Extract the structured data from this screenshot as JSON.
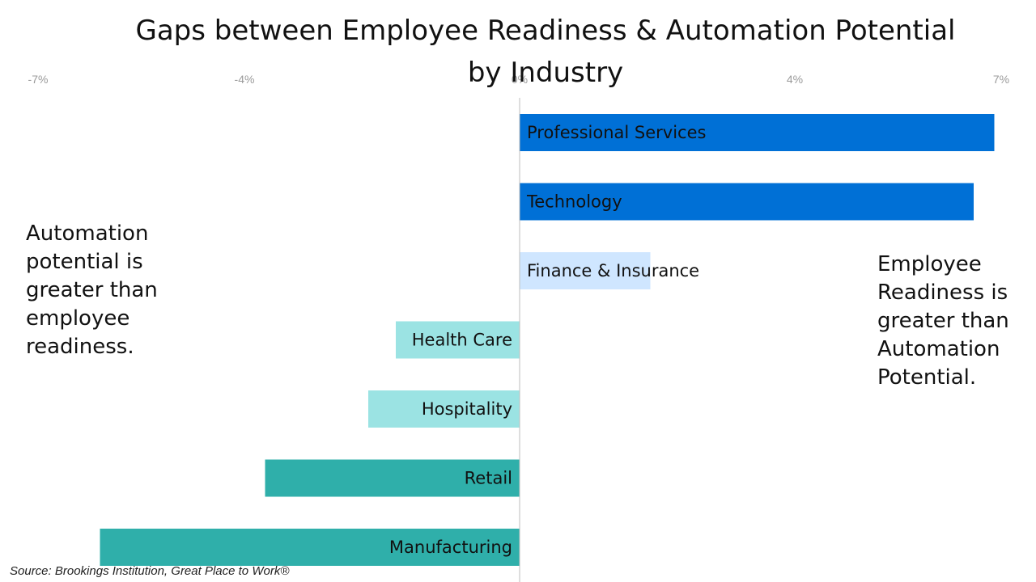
{
  "title_line1": "Gaps between Employee Readiness & Automation Potential",
  "title_line2": "by Industry",
  "left_note": "Automation\npotential is\ngreater than\nemployee\nreadiness.",
  "right_note": "Employee\nReadiness is\ngreater than\nAutomation\nPotential.",
  "source": "Source: Brookings Institution, Great Place to Work®",
  "chart_data": {
    "type": "bar",
    "orientation": "horizontal",
    "categories": [
      "Professional Services",
      "Technology",
      "Finance & Insurance",
      "Health Care",
      "Hospitality",
      "Retail",
      "Manufacturing"
    ],
    "values": [
      6.9,
      6.6,
      1.9,
      -1.8,
      -2.2,
      -3.7,
      -6.1
    ],
    "colors": [
      "#0070D6",
      "#0070D6",
      "#CFE6FF",
      "#9BE3E3",
      "#9BE3E3",
      "#2FAFAA",
      "#2FAFAA"
    ],
    "xlim": [
      -7.5,
      7.2
    ],
    "x_ticks": [
      -7,
      -4,
      0,
      4,
      7
    ],
    "x_tick_labels": [
      "-7%",
      "-4%",
      "0%",
      "4%",
      "7%"
    ],
    "grid": false,
    "legend": "none"
  }
}
